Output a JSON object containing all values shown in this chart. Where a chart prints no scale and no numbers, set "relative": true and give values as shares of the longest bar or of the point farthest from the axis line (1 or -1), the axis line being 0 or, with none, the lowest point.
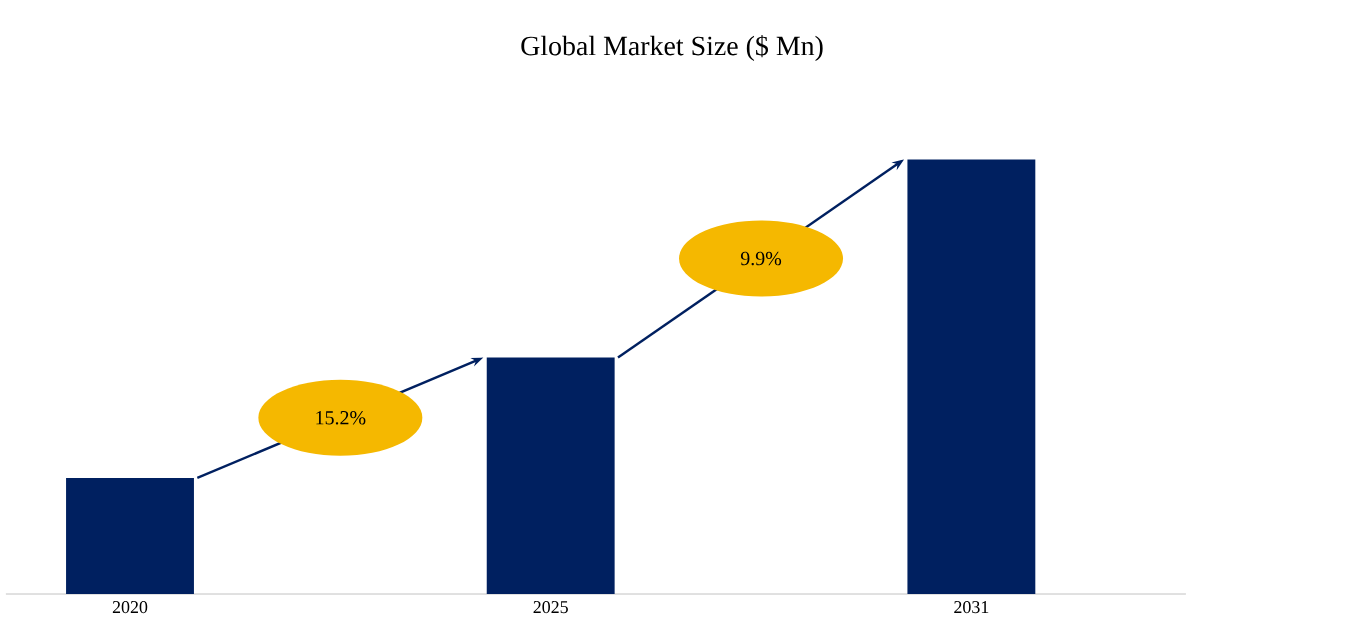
{
  "chart_data": {
    "type": "bar",
    "title": "Global Market Size ($ Mn)",
    "categories": [
      "2020",
      "2025",
      "2031"
    ],
    "values": [
      0.267,
      0.544,
      1
    ],
    "relative": true,
    "color": "#002060",
    "annotations": [
      "15.2%",
      "9.9%"
    ]
  }
}
